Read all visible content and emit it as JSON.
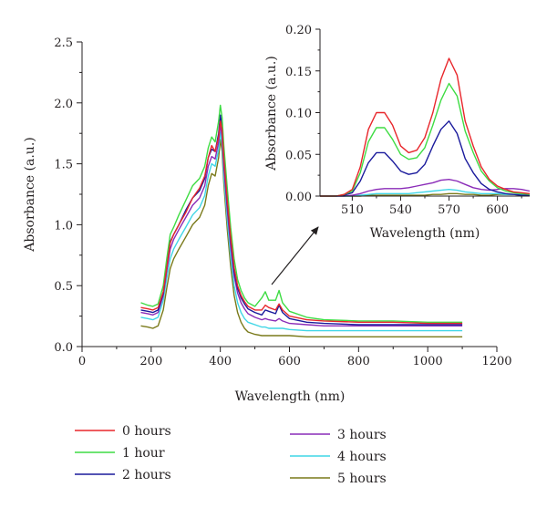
{
  "chart_data": [
    {
      "type": "line",
      "xlabel": "Wavelength (nm)",
      "ylabel": "Absorbance (a.u.)",
      "xlim": [
        0,
        1200
      ],
      "ylim": [
        0,
        2.5
      ],
      "x_ticks": [
        "0",
        "200",
        "400",
        "600",
        "800",
        "1000",
        "1200"
      ],
      "y_ticks": [
        "0.0",
        "0.5",
        "1.0",
        "1.5",
        "2.0",
        "2.5"
      ],
      "x": [
        170,
        190,
        205,
        220,
        235,
        245,
        255,
        265,
        280,
        300,
        320,
        340,
        355,
        365,
        375,
        385,
        395,
        400,
        405,
        410,
        420,
        430,
        440,
        450,
        460,
        470,
        480,
        500,
        520,
        530,
        540,
        560,
        570,
        580,
        600,
        650,
        700,
        800,
        900,
        1000,
        1100
      ],
      "series": [
        {
          "name": "0 hours",
          "color": "#e8262b",
          "values": [
            0.32,
            0.31,
            0.3,
            0.32,
            0.45,
            0.65,
            0.85,
            0.92,
            1.0,
            1.1,
            1.22,
            1.3,
            1.4,
            1.55,
            1.65,
            1.6,
            1.72,
            1.85,
            1.78,
            1.55,
            1.2,
            0.9,
            0.65,
            0.5,
            0.42,
            0.37,
            0.33,
            0.3,
            0.3,
            0.34,
            0.32,
            0.3,
            0.35,
            0.3,
            0.25,
            0.22,
            0.21,
            0.2,
            0.2,
            0.19,
            0.19
          ]
        },
        {
          "name": "1 hour",
          "color": "#3edc43",
          "values": [
            0.36,
            0.34,
            0.33,
            0.35,
            0.5,
            0.72,
            0.92,
            0.98,
            1.08,
            1.2,
            1.32,
            1.38,
            1.48,
            1.63,
            1.72,
            1.68,
            1.85,
            1.98,
            1.88,
            1.65,
            1.3,
            0.98,
            0.72,
            0.55,
            0.46,
            0.4,
            0.36,
            0.33,
            0.4,
            0.45,
            0.38,
            0.38,
            0.46,
            0.36,
            0.29,
            0.24,
            0.22,
            0.21,
            0.21,
            0.2,
            0.2
          ]
        },
        {
          "name": "2 hours",
          "color": "#1a1a9c",
          "values": [
            0.3,
            0.29,
            0.28,
            0.3,
            0.44,
            0.66,
            0.86,
            0.92,
            1.0,
            1.12,
            1.22,
            1.28,
            1.38,
            1.55,
            1.62,
            1.6,
            1.75,
            1.9,
            1.8,
            1.55,
            1.18,
            0.88,
            0.62,
            0.48,
            0.4,
            0.35,
            0.31,
            0.28,
            0.26,
            0.3,
            0.29,
            0.27,
            0.34,
            0.28,
            0.23,
            0.2,
            0.19,
            0.18,
            0.18,
            0.18,
            0.18
          ]
        },
        {
          "name": "3 hours",
          "color": "#8a2bb8",
          "values": [
            0.28,
            0.27,
            0.26,
            0.28,
            0.42,
            0.62,
            0.8,
            0.88,
            0.96,
            1.06,
            1.16,
            1.22,
            1.32,
            1.48,
            1.56,
            1.54,
            1.68,
            1.82,
            1.72,
            1.48,
            1.12,
            0.82,
            0.58,
            0.44,
            0.36,
            0.31,
            0.27,
            0.24,
            0.22,
            0.23,
            0.22,
            0.21,
            0.23,
            0.21,
            0.19,
            0.18,
            0.17,
            0.17,
            0.17,
            0.17,
            0.17
          ]
        },
        {
          "name": "4 hours",
          "color": "#3fd6e6",
          "values": [
            0.24,
            0.23,
            0.22,
            0.24,
            0.38,
            0.56,
            0.72,
            0.8,
            0.88,
            0.98,
            1.08,
            1.14,
            1.24,
            1.4,
            1.5,
            1.48,
            1.62,
            1.76,
            1.66,
            1.4,
            1.04,
            0.74,
            0.5,
            0.36,
            0.28,
            0.23,
            0.2,
            0.18,
            0.16,
            0.16,
            0.15,
            0.15,
            0.15,
            0.15,
            0.14,
            0.13,
            0.13,
            0.13,
            0.13,
            0.13,
            0.13
          ]
        },
        {
          "name": "5 hours",
          "color": "#7a7a1a",
          "values": [
            0.17,
            0.16,
            0.15,
            0.17,
            0.3,
            0.48,
            0.64,
            0.72,
            0.8,
            0.9,
            1.0,
            1.06,
            1.16,
            1.32,
            1.42,
            1.4,
            1.55,
            1.7,
            1.6,
            1.34,
            0.96,
            0.66,
            0.42,
            0.28,
            0.2,
            0.15,
            0.12,
            0.1,
            0.09,
            0.09,
            0.09,
            0.09,
            0.09,
            0.09,
            0.09,
            0.08,
            0.08,
            0.08,
            0.08,
            0.08,
            0.08
          ]
        }
      ],
      "legend": "bottom"
    },
    {
      "type": "line",
      "xlabel": "Wavelength (nm)",
      "ylabel": "Absorbance (a.u.)",
      "xlim": [
        490,
        620
      ],
      "ylim": [
        0,
        0.2
      ],
      "x_ticks": [
        "510",
        "540",
        "570",
        "600"
      ],
      "y_ticks": [
        "0.00",
        "0.05",
        "0.10",
        "0.15",
        "0.20"
      ],
      "x": [
        490,
        500,
        505,
        510,
        515,
        520,
        525,
        530,
        535,
        540,
        545,
        550,
        555,
        560,
        565,
        570,
        575,
        580,
        585,
        590,
        595,
        600,
        605,
        610,
        615,
        620
      ],
      "series": [
        {
          "name": "0 hours",
          "color": "#e8262b",
          "values": [
            0.0,
            0.0,
            0.002,
            0.008,
            0.035,
            0.08,
            0.1,
            0.1,
            0.085,
            0.06,
            0.052,
            0.055,
            0.07,
            0.1,
            0.14,
            0.165,
            0.145,
            0.09,
            0.06,
            0.035,
            0.02,
            0.012,
            0.008,
            0.005,
            0.004,
            0.003
          ]
        },
        {
          "name": "1 hour",
          "color": "#3edc43",
          "values": [
            0.0,
            0.0,
            0.002,
            0.006,
            0.028,
            0.065,
            0.082,
            0.082,
            0.068,
            0.05,
            0.044,
            0.046,
            0.058,
            0.085,
            0.115,
            0.135,
            0.12,
            0.078,
            0.052,
            0.03,
            0.018,
            0.01,
            0.006,
            0.004,
            0.003,
            0.002
          ]
        },
        {
          "name": "2 hours",
          "color": "#1a1a9c",
          "values": [
            0.0,
            0.0,
            0.001,
            0.004,
            0.018,
            0.04,
            0.052,
            0.052,
            0.042,
            0.03,
            0.026,
            0.028,
            0.038,
            0.06,
            0.08,
            0.09,
            0.075,
            0.045,
            0.028,
            0.015,
            0.008,
            0.005,
            0.003,
            0.002,
            0.001,
            0.001
          ]
        },
        {
          "name": "3 hours",
          "color": "#8a2bb8",
          "values": [
            0.0,
            0.0,
            0.0,
            0.001,
            0.003,
            0.006,
            0.008,
            0.009,
            0.009,
            0.009,
            0.01,
            0.012,
            0.014,
            0.016,
            0.019,
            0.02,
            0.018,
            0.014,
            0.01,
            0.008,
            0.007,
            0.008,
            0.009,
            0.009,
            0.008,
            0.006
          ]
        },
        {
          "name": "4 hours",
          "color": "#3fd6e6",
          "values": [
            0.0,
            0.0,
            0.0,
            0.0,
            0.001,
            0.002,
            0.003,
            0.003,
            0.003,
            0.003,
            0.003,
            0.004,
            0.005,
            0.006,
            0.007,
            0.008,
            0.007,
            0.005,
            0.004,
            0.003,
            0.003,
            0.003,
            0.002,
            0.002,
            0.002,
            0.001
          ]
        },
        {
          "name": "5 hours",
          "color": "#7a7a1a",
          "values": [
            0.0,
            0.0,
            0.0,
            0.0,
            0.0,
            0.001,
            0.001,
            0.001,
            0.001,
            0.001,
            0.001,
            0.001,
            0.001,
            0.002,
            0.002,
            0.003,
            0.003,
            0.002,
            0.002,
            0.001,
            0.001,
            0.002,
            0.002,
            0.002,
            0.001,
            0.001
          ]
        }
      ]
    }
  ]
}
